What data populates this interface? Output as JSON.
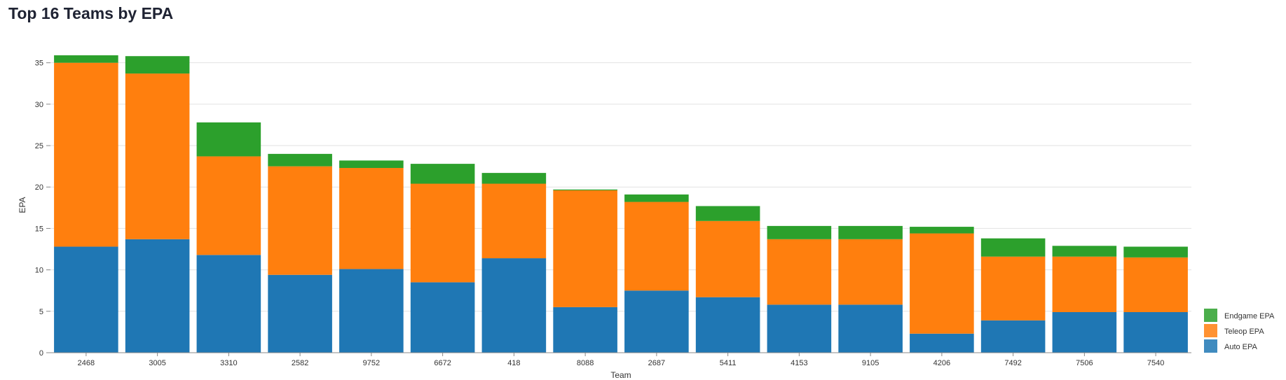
{
  "page": {
    "title": "Top 16 Teams by EPA"
  },
  "chart_data": {
    "type": "bar",
    "stacked": true,
    "title": "Top 16 Teams by EPA",
    "xlabel": "Team",
    "ylabel": "EPA",
    "ylim": [
      0,
      37
    ],
    "yticks": [
      0,
      5,
      10,
      15,
      20,
      25,
      30,
      35
    ],
    "grid": true,
    "legend_position": "bottom-right",
    "categories": [
      "2468",
      "3005",
      "3310",
      "2582",
      "9752",
      "6672",
      "418",
      "8088",
      "2687",
      "5411",
      "4153",
      "9105",
      "4206",
      "7492",
      "7506",
      "7540"
    ],
    "series": [
      {
        "name": "Auto EPA",
        "color": "#1f77b4",
        "values": [
          12.8,
          13.7,
          11.8,
          9.4,
          10.1,
          8.5,
          11.4,
          5.5,
          7.5,
          6.7,
          5.8,
          5.8,
          2.3,
          3.9,
          4.9,
          4.9
        ]
      },
      {
        "name": "Teleop EPA",
        "color": "#ff7f0e",
        "values": [
          22.2,
          20.0,
          11.9,
          13.1,
          12.2,
          11.9,
          9.0,
          14.1,
          10.7,
          9.2,
          7.9,
          7.9,
          12.1,
          7.7,
          6.7,
          6.6
        ]
      },
      {
        "name": "Endgame EPA",
        "color": "#2ca02c",
        "values": [
          0.9,
          2.1,
          4.1,
          1.5,
          0.9,
          2.4,
          1.3,
          0.1,
          0.9,
          1.8,
          1.6,
          1.6,
          0.8,
          2.2,
          1.3,
          1.3
        ]
      }
    ],
    "legend_order": [
      "Endgame EPA",
      "Teleop EPA",
      "Auto EPA"
    ]
  }
}
